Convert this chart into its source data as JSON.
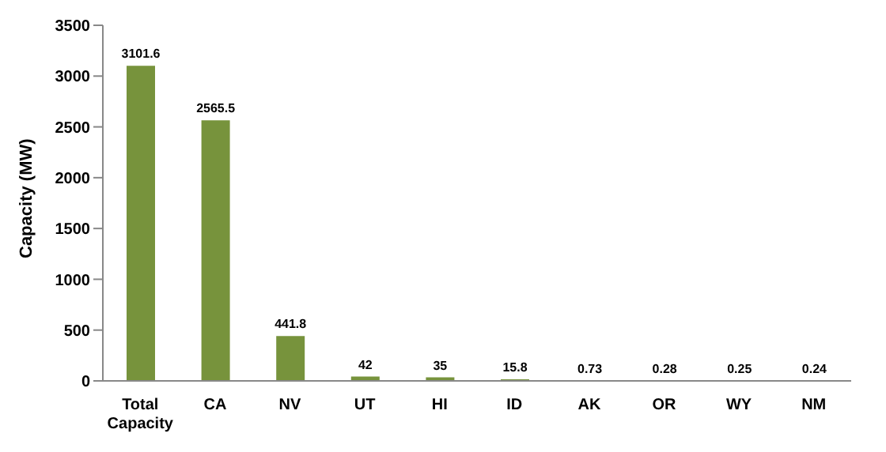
{
  "chart_data": {
    "type": "bar",
    "ylabel": "Capacity (MW)",
    "categories": [
      "Total Capacity",
      "CA",
      "NV",
      "UT",
      "HI",
      "ID",
      "AK",
      "OR",
      "WY",
      "NM"
    ],
    "values": [
      3101.6,
      2565.5,
      441.8,
      42,
      35,
      15.8,
      0.73,
      0.28,
      0.25,
      0.24
    ],
    "color": "#77933c",
    "ylim": [
      0,
      3500
    ],
    "yticks": [
      0,
      500,
      1000,
      1500,
      2000,
      2500,
      3000,
      3500
    ],
    "grid": false,
    "data_labels": true
  }
}
